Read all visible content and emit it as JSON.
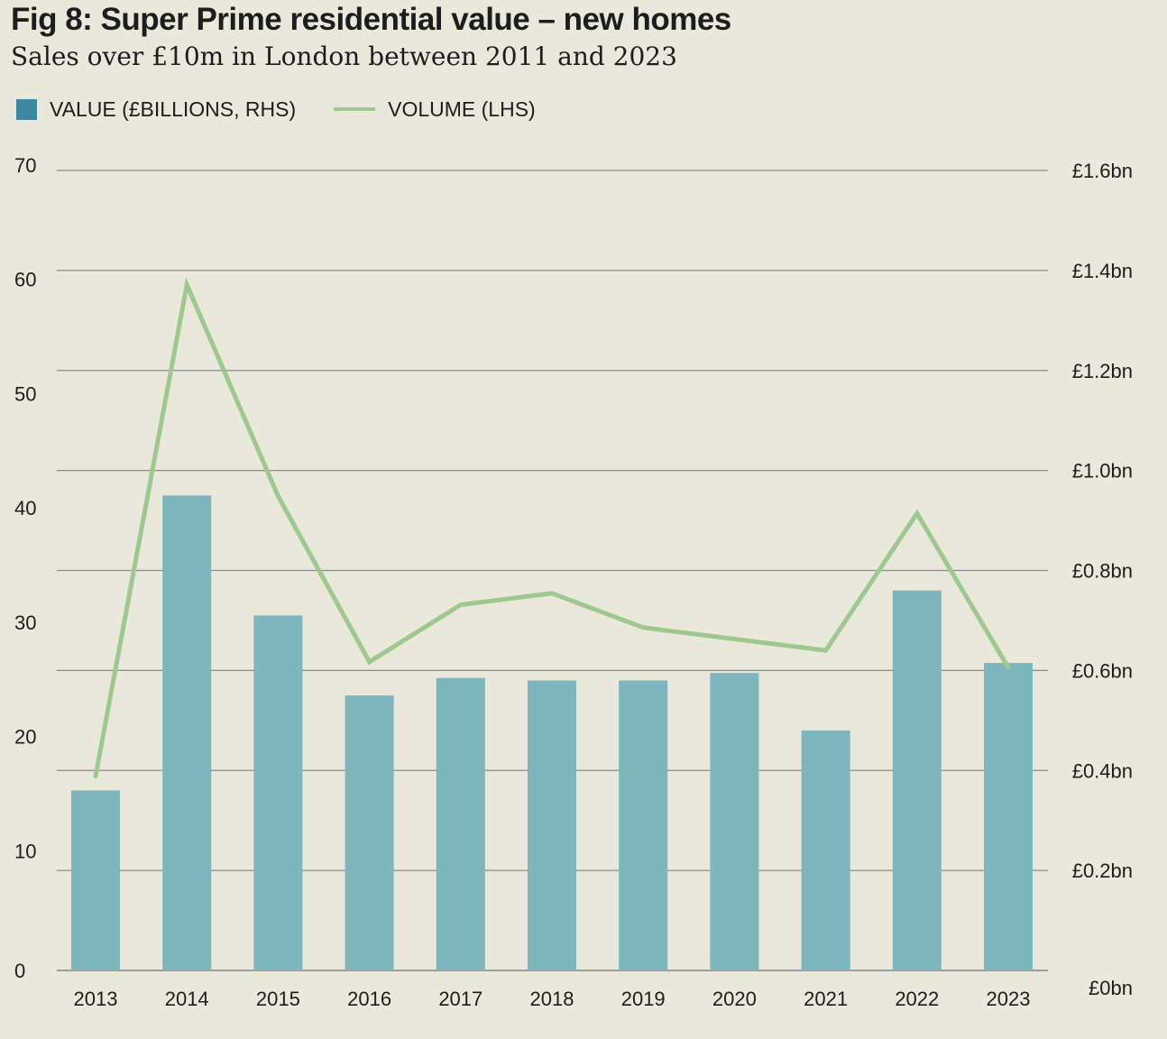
{
  "title": "Fig 8: Super Prime residential value – new homes",
  "subtitle": "Sales over £10m in London between 2011 and 2023",
  "legend": {
    "bar_label": "VALUE (£BILLIONS, RHS)",
    "line_label": "VOLUME (LHS)"
  },
  "colors": {
    "background": "#e9e8da",
    "bar": "#7fb5bd",
    "bar_legend": "#3f86a0",
    "line": "#9ec890",
    "grid": "#8a8a8a"
  },
  "chart_data": {
    "type": "bar",
    "categories": [
      "2013",
      "2014",
      "2015",
      "2016",
      "2017",
      "2018",
      "2019",
      "2020",
      "2021",
      "2022",
      "2023"
    ],
    "series": [
      {
        "name": "VALUE (£BILLIONS, RHS)",
        "type": "bar",
        "axis": "right",
        "values": [
          0.36,
          0.95,
          0.71,
          0.55,
          0.585,
          0.58,
          0.58,
          0.595,
          0.48,
          0.76,
          0.615
        ]
      },
      {
        "name": "VOLUME (LHS)",
        "type": "line",
        "axis": "left",
        "values": [
          17,
          60,
          41.5,
          27,
          32,
          33,
          30,
          29,
          28,
          40,
          26.5
        ]
      }
    ],
    "left_axis": {
      "ticks": [
        "0",
        "10",
        "20",
        "30",
        "40",
        "50",
        "60",
        "70"
      ],
      "ylim": [
        0,
        70
      ]
    },
    "right_axis": {
      "ticks": [
        "£0bn",
        "£0.2bn",
        "£0.4bn",
        "£0.6bn",
        "£0.8bn",
        "£1.0bn",
        "£1.2bn",
        "£1.4bn",
        "£1.6bn"
      ],
      "ylim": [
        0,
        1.6
      ]
    },
    "xlabel": "",
    "ylabel": "",
    "grid": true,
    "legend_position": "top-left"
  }
}
